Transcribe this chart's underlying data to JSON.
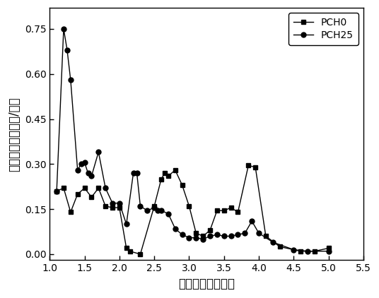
{
  "pch0_x": [
    1.1,
    1.2,
    1.3,
    1.4,
    1.5,
    1.6,
    1.7,
    1.8,
    1.9,
    2.0,
    2.1,
    2.15,
    2.3,
    2.5,
    2.6,
    2.65,
    2.7,
    2.8,
    2.9,
    3.0,
    3.1,
    3.2,
    3.3,
    3.4,
    3.5,
    3.6,
    3.7,
    3.85,
    3.95,
    4.1,
    4.3,
    4.6,
    4.8,
    5.0
  ],
  "pch0_y": [
    0.21,
    0.22,
    0.14,
    0.2,
    0.22,
    0.19,
    0.22,
    0.16,
    0.155,
    0.155,
    0.02,
    0.01,
    0.0,
    0.16,
    0.25,
    0.27,
    0.26,
    0.28,
    0.23,
    0.16,
    0.07,
    0.06,
    0.08,
    0.145,
    0.145,
    0.155,
    0.14,
    0.295,
    0.29,
    0.06,
    0.025,
    0.01,
    0.01,
    0.02
  ],
  "pch25_x": [
    1.1,
    1.2,
    1.25,
    1.3,
    1.4,
    1.45,
    1.5,
    1.55,
    1.6,
    1.7,
    1.8,
    1.9,
    2.0,
    2.1,
    2.2,
    2.25,
    2.3,
    2.4,
    2.5,
    2.55,
    2.6,
    2.7,
    2.8,
    2.9,
    3.0,
    3.1,
    3.2,
    3.3,
    3.4,
    3.5,
    3.6,
    3.7,
    3.8,
    3.9,
    4.0,
    4.2,
    4.5,
    4.7,
    5.0
  ],
  "pch25_y": [
    0.21,
    0.75,
    0.68,
    0.58,
    0.28,
    0.3,
    0.305,
    0.27,
    0.26,
    0.34,
    0.22,
    0.17,
    0.17,
    0.1,
    0.27,
    0.27,
    0.16,
    0.145,
    0.155,
    0.145,
    0.145,
    0.135,
    0.085,
    0.065,
    0.055,
    0.055,
    0.05,
    0.06,
    0.065,
    0.06,
    0.06,
    0.065,
    0.07,
    0.11,
    0.07,
    0.04,
    0.015,
    0.01,
    0.01
  ],
  "xlabel": "孔径宽度（纳米）",
  "ylabel": "孔容积分（立方米/克）",
  "xlim": [
    1.0,
    5.5
  ],
  "ylim": [
    -0.02,
    0.82
  ],
  "yticks": [
    0.0,
    0.15,
    0.3,
    0.45,
    0.6,
    0.75
  ],
  "xticks": [
    1.0,
    1.5,
    2.0,
    2.5,
    3.0,
    3.5,
    4.0,
    4.5,
    5.0,
    5.5
  ],
  "line_color": "#000000",
  "background_color": "#ffffff",
  "legend_labels": [
    "PCH0",
    "PCH25"
  ],
  "marker_pch0": "s",
  "marker_pch25": "o",
  "figsize": [
    5.36,
    4.22
  ],
  "dpi": 100
}
